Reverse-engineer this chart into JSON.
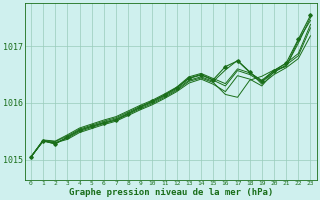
{
  "title": "Graphe pression niveau de la mer (hPa)",
  "background_color": "#cff0ee",
  "plot_bg_color": "#cff0ee",
  "line_color": "#1a6e1a",
  "grid_color": "#99ccbb",
  "ylim": [
    1014.65,
    1017.75
  ],
  "xlim": [
    -0.5,
    23.5
  ],
  "yticks": [
    1015,
    1016,
    1017
  ],
  "xticks": [
    0,
    1,
    2,
    3,
    4,
    5,
    6,
    7,
    8,
    9,
    10,
    11,
    12,
    13,
    14,
    15,
    16,
    17,
    18,
    19,
    20,
    21,
    22,
    23
  ],
  "series": [
    [
      1015.05,
      1015.33,
      1015.3,
      1015.36,
      1015.48,
      1015.55,
      1015.62,
      1015.68,
      1015.78,
      1015.88,
      1015.97,
      1016.08,
      1016.2,
      1016.35,
      1016.42,
      1016.33,
      1016.2,
      1016.48,
      1016.42,
      1016.3,
      1016.55,
      1016.65,
      1017.05,
      1017.5
    ],
    [
      1015.05,
      1015.33,
      1015.3,
      1015.38,
      1015.5,
      1015.57,
      1015.64,
      1015.7,
      1015.8,
      1015.9,
      1015.99,
      1016.1,
      1016.22,
      1016.38,
      1016.44,
      1016.36,
      1016.15,
      1016.1,
      1016.4,
      1016.47,
      1016.58,
      1016.64,
      1017.1,
      1017.45
    ],
    [
      1015.05,
      1015.33,
      1015.28,
      1015.4,
      1015.52,
      1015.59,
      1015.66,
      1015.72,
      1015.82,
      1015.92,
      1016.01,
      1016.12,
      1016.24,
      1016.4,
      1016.46,
      1016.38,
      1016.58,
      1016.75,
      1016.55,
      1016.33,
      1016.5,
      1016.62,
      1016.78,
      1017.18
    ],
    [
      1015.05,
      1015.34,
      1015.32,
      1015.42,
      1015.54,
      1015.61,
      1015.68,
      1015.74,
      1015.84,
      1015.94,
      1016.03,
      1016.14,
      1016.26,
      1016.43,
      1016.49,
      1016.4,
      1016.3,
      1016.57,
      1016.5,
      1016.37,
      1016.54,
      1016.67,
      1016.83,
      1017.32
    ],
    [
      1015.05,
      1015.35,
      1015.33,
      1015.44,
      1015.56,
      1015.63,
      1015.7,
      1015.76,
      1015.86,
      1015.96,
      1016.05,
      1016.16,
      1016.28,
      1016.46,
      1016.52,
      1016.43,
      1016.34,
      1016.6,
      1016.53,
      1016.4,
      1016.57,
      1016.7,
      1016.87,
      1017.38
    ]
  ],
  "marker_series": [
    1015.05,
    1015.34,
    1015.28,
    1015.4,
    1015.52,
    1015.59,
    1015.65,
    1015.7,
    1015.81,
    1015.93,
    1016.03,
    1016.14,
    1016.27,
    1016.44,
    1016.5,
    1016.41,
    1016.64,
    1016.74,
    1016.54,
    1016.38,
    1016.57,
    1016.7,
    1017.12,
    1017.54
  ],
  "title_fontsize": 6.5
}
